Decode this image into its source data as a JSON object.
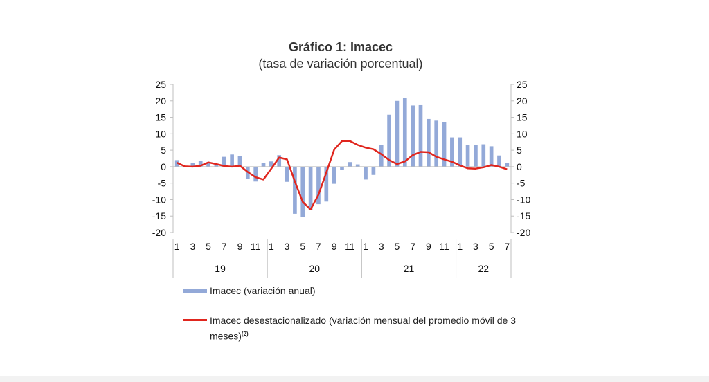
{
  "chart_data": {
    "type": "bar",
    "title": "Gráfico 1: Imacec",
    "subtitle": "(tasa de variación porcentual)",
    "ylim": [
      -20,
      25
    ],
    "yticks": [
      25,
      20,
      15,
      10,
      5,
      0,
      -5,
      -10,
      -15,
      -20
    ],
    "grid": false,
    "months": [
      "1",
      "2",
      "3",
      "4",
      "5",
      "6",
      "7",
      "8",
      "9",
      "10",
      "11",
      "12",
      "1",
      "2",
      "3",
      "4",
      "5",
      "6",
      "7",
      "8",
      "9",
      "10",
      "11",
      "12",
      "1",
      "2",
      "3",
      "4",
      "5",
      "6",
      "7",
      "8",
      "9",
      "10",
      "11",
      "12",
      "1",
      "2",
      "3",
      "4",
      "5",
      "6",
      "7"
    ],
    "month_tick_labels": [
      "1",
      "3",
      "5",
      "7",
      "9",
      "11",
      "1",
      "3",
      "5",
      "7",
      "9",
      "11",
      "1",
      "3",
      "5",
      "7",
      "9",
      "11",
      "1",
      "3",
      "5",
      "7"
    ],
    "years": [
      "19",
      "20",
      "21",
      "22"
    ],
    "colors": {
      "bar": "#93a9d8",
      "line": "#e0261e"
    },
    "series": [
      {
        "name": "Imacec (variación anual)",
        "type": "bar",
        "values": [
          2.0,
          0.2,
          1.2,
          1.8,
          1.2,
          0.8,
          3.0,
          3.7,
          3.2,
          -3.8,
          -4.5,
          1.1,
          1.6,
          3.5,
          -4.6,
          -14.3,
          -15.2,
          -13.2,
          -11.4,
          -10.6,
          -5.2,
          -1.0,
          1.4,
          0.7,
          -3.9,
          -2.5,
          6.6,
          15.8,
          20.0,
          21.0,
          18.6,
          18.7,
          14.5,
          14.0,
          13.6,
          8.9,
          8.9,
          6.7,
          6.7,
          6.8,
          6.2,
          3.4,
          1.1
        ]
      },
      {
        "name": "Imacec desestacionalizado (variación mensual del promedio móvil de 3 meses)",
        "name_sup": "(2)",
        "type": "line",
        "values": [
          1.2,
          0.1,
          0.0,
          0.3,
          1.3,
          0.8,
          0.2,
          0.0,
          0.3,
          -1.6,
          -3.2,
          -3.9,
          -0.6,
          2.8,
          2.2,
          -4.5,
          -10.7,
          -13.0,
          -8.5,
          -1.8,
          5.2,
          7.8,
          7.8,
          6.6,
          5.8,
          5.3,
          3.8,
          2.0,
          0.8,
          1.6,
          3.5,
          4.5,
          4.4,
          3.0,
          2.2,
          1.5,
          0.4,
          -0.5,
          -0.6,
          -0.2,
          0.5,
          0.0,
          -0.8
        ]
      }
    ]
  }
}
